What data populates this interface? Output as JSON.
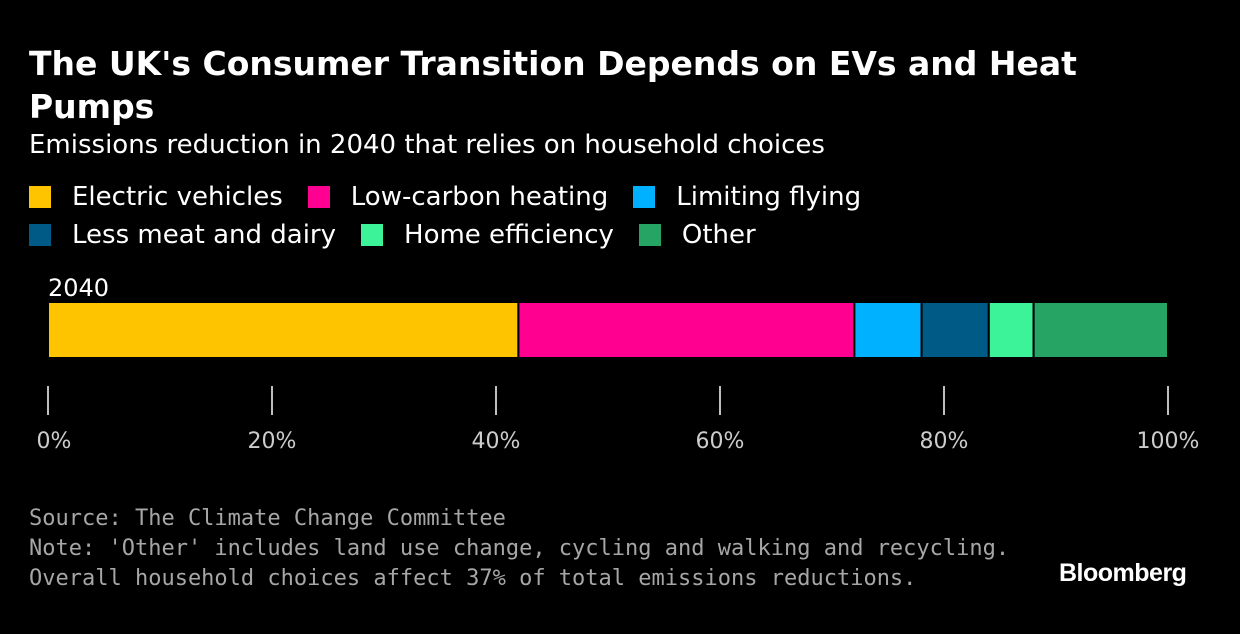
{
  "header": {
    "title": "The UK's Consumer Transition Depends on EVs and Heat Pumps",
    "subtitle": "Emissions reduction in 2040 that relies on household choices"
  },
  "legend": [
    [
      {
        "label": "Electric vehicles",
        "color": "#FFC400"
      },
      {
        "label": "Low-carbon heating",
        "color": "#FF0090"
      },
      {
        "label": "Limiting flying",
        "color": "#00B1FF"
      }
    ],
    [
      {
        "label": "Less meat and dairy",
        "color": "#005A86"
      },
      {
        "label": "Home efficiency",
        "color": "#3DF39A"
      },
      {
        "label": "Other",
        "color": "#25A463"
      }
    ]
  ],
  "chart_data": {
    "type": "bar",
    "orientation": "horizontal",
    "stacked": true,
    "categories": [
      "2040"
    ],
    "series": [
      {
        "name": "Electric vehicles",
        "values": [
          42
        ],
        "color": "#FFC400"
      },
      {
        "name": "Low-carbon heating",
        "values": [
          30
        ],
        "color": "#FF0090"
      },
      {
        "name": "Limiting flying",
        "values": [
          6
        ],
        "color": "#00B1FF"
      },
      {
        "name": "Less meat and dairy",
        "values": [
          6
        ],
        "color": "#005A86"
      },
      {
        "name": "Home efficiency",
        "values": [
          4
        ],
        "color": "#3DF39A"
      },
      {
        "name": "Other",
        "values": [
          12
        ],
        "color": "#25A463"
      }
    ],
    "xlim": [
      0,
      100
    ],
    "xticks": [
      0,
      20,
      40,
      60,
      80,
      100
    ],
    "xtick_labels": [
      "0%",
      "20%",
      "40%",
      "60%",
      "80%",
      "100%"
    ],
    "title": "The UK's Consumer Transition Depends on EVs and Heat Pumps",
    "xlabel": "",
    "ylabel": "",
    "grid": false,
    "legend_position": "top"
  },
  "footer": {
    "source": "Source: The Climate Change Committee",
    "note_line1": "Note: 'Other' includes land use change, cycling and walking and recycling.",
    "note_line2": "Overall household choices affect 37% of total emissions reductions.",
    "brand": "Bloomberg"
  }
}
